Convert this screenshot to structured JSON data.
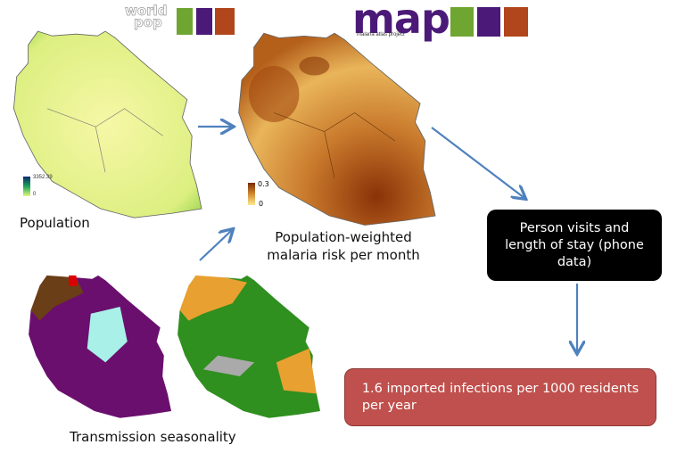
{
  "logos": {
    "worldpop": {
      "line1": "world",
      "line2": "pop"
    },
    "map": {
      "word": "map",
      "tagline": "malaria atlas project"
    },
    "tile_colors": [
      "#6fa531",
      "#4b1a78",
      "#b1461c"
    ]
  },
  "population": {
    "label": "Population",
    "legend_max": "3352.39",
    "legend_min": "0"
  },
  "risk": {
    "label_line1": "Population-weighted",
    "label_line2": "malaria risk per month",
    "legend_max": "0.3",
    "legend_min": "0"
  },
  "seasonality": {
    "label": "Transmission seasonality"
  },
  "phone_box": {
    "line1": "Person visits and",
    "line2": "length of stay (phone",
    "line3": "data)",
    "bg": "#000000"
  },
  "result_box": {
    "line1": "1.6 imported infections per 1000 residents",
    "line2": "per year",
    "bg": "#c0504d"
  },
  "arrow_color": "#4f81bd"
}
